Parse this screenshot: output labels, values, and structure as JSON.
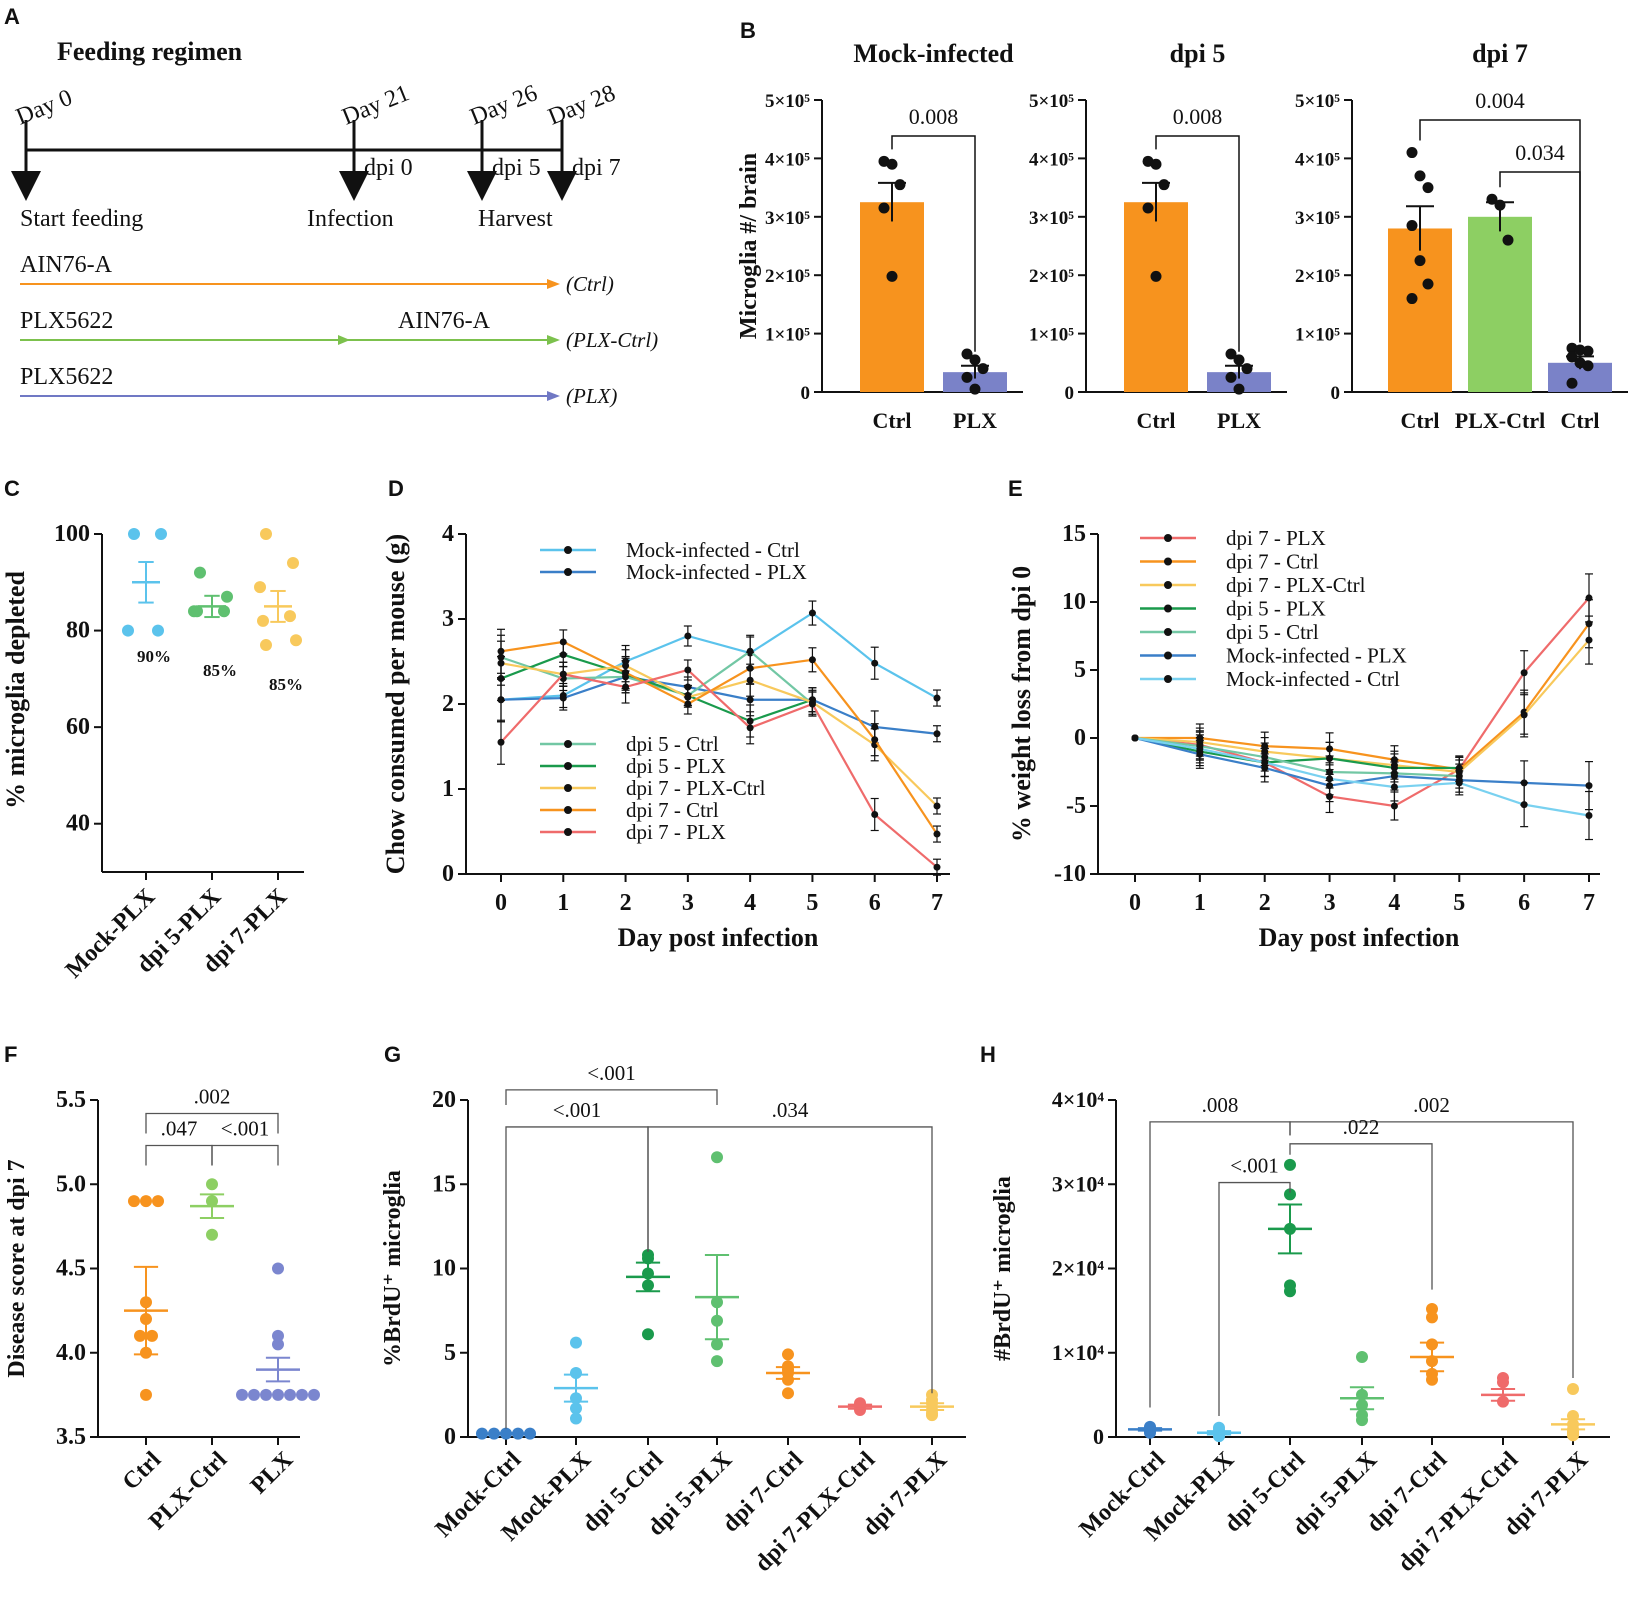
{
  "figure": {
    "colors": {
      "orange": "#f7931e",
      "green": "#8dcf63",
      "green_dark": "#1a9a4c",
      "green_mid": "#5fc070",
      "blue": "#3a7fc8",
      "blue_light": "#5bc3ec",
      "navy": "#7a82c8",
      "purple": "#7b86cf",
      "yellow": "#f8c95c",
      "red": "#ef6b6b",
      "teal": "#72c7a4",
      "cyan_light": "#79d1f0"
    }
  },
  "panel_labels": [
    "A",
    "B",
    "C",
    "D",
    "E",
    "F",
    "G",
    "H"
  ],
  "panelA": {
    "title": "Feeding regimen",
    "days": [
      "Day 0",
      "Day 21",
      "Day 26",
      "Day 28"
    ],
    "dpi": [
      "dpi 0",
      "dpi 5",
      "dpi 7"
    ],
    "events": [
      "Start feeding",
      "Infection",
      "Harvest"
    ],
    "diets": [
      {
        "name": "AIN76-A",
        "name2": "",
        "tag": "(Ctrl)",
        "color": "#f7931e"
      },
      {
        "name": "PLX5622",
        "name2": "AIN76-A",
        "tag": "(PLX-Ctrl)",
        "color": "#7cc14d"
      },
      {
        "name": "PLX5622",
        "name2": "",
        "tag": "(PLX)",
        "color": "#7078c4"
      }
    ]
  },
  "chart_data": [
    {
      "panel": "B",
      "type": "bar",
      "ylabel": "Microglia #/ brain",
      "ylim": [
        0,
        500000
      ],
      "yticks": [
        "0",
        "1×10⁵",
        "2×10⁵",
        "3×10⁵",
        "4×10⁵",
        "5×10⁵"
      ],
      "subplots": [
        {
          "title": "Mock-infected",
          "categories": [
            "Ctrl",
            "PLX"
          ],
          "values": [
            325000,
            34000
          ],
          "sem": [
            33000,
            11000
          ],
          "points": [
            [
              395000,
              390000,
              355000,
              315000,
              198000
            ],
            [
              65000,
              55000,
              40000,
              25000,
              5000
            ]
          ],
          "comparisons": [
            {
              "text": "0.008",
              "from": 0,
              "to": 1,
              "level": 0
            }
          ]
        },
        {
          "title": "dpi 5",
          "categories": [
            "Ctrl",
            "PLX"
          ],
          "values": [
            325000,
            34000
          ],
          "sem": [
            33000,
            11000
          ],
          "points": [
            [
              395000,
              390000,
              355000,
              315000,
              198000
            ],
            [
              65000,
              55000,
              40000,
              25000,
              5000
            ]
          ],
          "comparisons": [
            {
              "text": "0.008",
              "from": 0,
              "to": 1,
              "level": 0
            }
          ]
        },
        {
          "title": "dpi 7",
          "categories": [
            "Ctrl",
            "PLX-Ctrl",
            "Ctrl"
          ],
          "values": [
            280000,
            300000,
            50000
          ],
          "sem": [
            38000,
            25000,
            11000
          ],
          "points": [
            [
              410000,
              370000,
              350000,
              285000,
              225000,
              185000,
              160000
            ],
            [
              330000,
              320000,
              260000
            ],
            [
              75000,
              72000,
              70000,
              60000,
              50000,
              45000,
              15000
            ]
          ],
          "comparisons": [
            {
              "text": "0.004",
              "from": 0,
              "to": 2,
              "level": 1
            },
            {
              "text": "0.034",
              "from": 1,
              "to": 2,
              "level": 0
            }
          ]
        }
      ]
    },
    {
      "panel": "C",
      "type": "scatter",
      "ylabel": "% microglia depleted",
      "ylim": [
        30,
        100
      ],
      "yticks": [
        40,
        60,
        80,
        100
      ],
      "categories": [
        "Mock-PLX",
        "dpi 5-PLX",
        "dpi 7-PLX"
      ],
      "series": [
        {
          "name": "Mock-PLX",
          "points": [
            100,
            100,
            80,
            80
          ],
          "mean": 90,
          "sem": 4.2,
          "label": "90%"
        },
        {
          "name": "dpi 5-PLX",
          "points": [
            92,
            87,
            84,
            84,
            84
          ],
          "mean": 85,
          "sem": 2.2,
          "label": "85%"
        },
        {
          "name": "dpi 7-PLX",
          "points": [
            100,
            94,
            89,
            83,
            82,
            78,
            77
          ],
          "mean": 85,
          "sem": 3.2,
          "label": "85%"
        }
      ]
    },
    {
      "panel": "D",
      "type": "line",
      "xlabel": "Day post infection",
      "ylabel": "Chow consumed per mouse (g)",
      "x": [
        0,
        1,
        2,
        3,
        4,
        5,
        6,
        7
      ],
      "ylim": [
        0,
        4
      ],
      "yticks": [
        0,
        1,
        2,
        3,
        4
      ],
      "series": [
        {
          "name": "Mock-infected - Ctrl",
          "values": [
            2.05,
            2.1,
            2.5,
            2.8,
            2.6,
            3.07,
            2.48,
            2.07
          ]
        },
        {
          "name": "Mock-infected - PLX",
          "values": [
            2.05,
            2.07,
            2.32,
            2.2,
            2.05,
            2.05,
            1.73,
            1.65
          ]
        },
        {
          "name": "dpi 5 - Ctrl",
          "values": [
            2.55,
            2.3,
            2.32,
            2.1,
            2.62,
            2.0,
            null,
            null
          ]
        },
        {
          "name": "dpi 5 - PLX",
          "values": [
            2.3,
            2.58,
            2.35,
            2.1,
            1.8,
            2.05,
            null,
            null
          ]
        },
        {
          "name": "dpi 7 - PLX-Ctrl",
          "values": [
            2.48,
            2.35,
            2.45,
            2.08,
            2.28,
            2.02,
            1.52,
            0.8
          ]
        },
        {
          "name": "dpi 7 - Ctrl",
          "values": [
            2.62,
            2.73,
            2.37,
            2.0,
            2.42,
            2.52,
            1.58,
            0.47
          ]
        },
        {
          "name": "dpi 7 - PLX",
          "values": [
            1.55,
            2.35,
            2.2,
            2.4,
            1.72,
            2.0,
            0.7,
            0.08
          ]
        }
      ]
    },
    {
      "panel": "E",
      "type": "line",
      "xlabel": "Day post infection",
      "ylabel": "% weight loss from dpi 0",
      "x": [
        0,
        1,
        2,
        3,
        4,
        5,
        6,
        7
      ],
      "ylim": [
        -10,
        15
      ],
      "yticks": [
        -10,
        -5,
        0,
        5,
        10,
        15
      ],
      "series": [
        {
          "name": "dpi 7 - PLX",
          "values": [
            0,
            -0.5,
            -1.8,
            -4.3,
            -5.0,
            -2.3,
            4.8,
            10.3
          ]
        },
        {
          "name": "dpi 7 - Ctrl",
          "values": [
            0,
            0.0,
            -0.6,
            -0.8,
            -1.6,
            -2.3,
            1.9,
            8.4
          ]
        },
        {
          "name": "dpi 7 - PLX-Ctrl",
          "values": [
            0,
            -0.3,
            -1.0,
            -1.5,
            -2.0,
            -2.5,
            1.7,
            7.2
          ]
        },
        {
          "name": "dpi 5 - PLX",
          "values": [
            0,
            -1.0,
            -1.8,
            -1.5,
            -2.2,
            -2.2,
            null,
            null
          ]
        },
        {
          "name": "dpi 5 - Ctrl",
          "values": [
            0,
            -0.6,
            -1.4,
            -2.5,
            -2.6,
            -2.8,
            null,
            null
          ]
        },
        {
          "name": "Mock-infected - PLX",
          "values": [
            0,
            -1.2,
            -2.2,
            -3.5,
            -2.8,
            -3.1,
            -3.3,
            -3.5
          ]
        },
        {
          "name": "Mock-infected - Ctrl",
          "values": [
            0,
            -0.8,
            -1.8,
            -3.0,
            -3.6,
            -3.3,
            -4.9,
            -5.7
          ]
        }
      ]
    },
    {
      "panel": "F",
      "type": "scatter",
      "ylabel": "Disease score at dpi 7",
      "ylim": [
        3.5,
        5.5
      ],
      "yticks": [
        "3.5",
        "4.0",
        "4.5",
        "5.0",
        "5.5"
      ],
      "categories": [
        "Ctrl",
        "PLX-Ctrl",
        "PLX"
      ],
      "series": [
        {
          "name": "Ctrl",
          "points": [
            4.9,
            4.9,
            4.9,
            4.3,
            4.2,
            4.1,
            4.1,
            4.0,
            3.75
          ],
          "mean": 4.25,
          "sem": 0.26
        },
        {
          "name": "PLX-Ctrl",
          "points": [
            5.0,
            4.9,
            4.7
          ],
          "mean": 4.87,
          "sem": 0.07
        },
        {
          "name": "PLX",
          "points": [
            4.5,
            4.1,
            4.05,
            3.75,
            3.75,
            3.75,
            3.75,
            3.75,
            3.75,
            3.75
          ],
          "mean": 3.9,
          "sem": 0.07
        }
      ],
      "comparisons": [
        {
          "text": ".002",
          "from": 0,
          "to": 2,
          "y": 5.42
        },
        {
          "text": ".047",
          "from": 0,
          "to": 1,
          "y": 5.23
        },
        {
          "text": "<.001",
          "from": 1,
          "to": 2,
          "y": 5.23
        }
      ]
    },
    {
      "panel": "G",
      "type": "scatter",
      "ylabel": "%BrdU⁺ microglia",
      "ylim": [
        0,
        20
      ],
      "yticks": [
        0,
        5,
        10,
        15,
        20
      ],
      "categories": [
        "Mock-Ctrl",
        "Mock-PLX",
        "dpi 5-Ctrl",
        "dpi 5-PLX",
        "dpi 7-Ctrl",
        "dpi 7-PLX-Ctrl",
        "dpi 7-PLX"
      ],
      "series": [
        {
          "name": "Mock-Ctrl",
          "points": [
            0.2,
            0.2,
            0.2,
            0.2,
            0.2
          ],
          "mean": 0.2,
          "sem": 0.03
        },
        {
          "name": "Mock-PLX",
          "points": [
            5.6,
            3.8,
            2.3,
            1.7,
            1.1
          ],
          "mean": 2.9,
          "sem": 0.8
        },
        {
          "name": "dpi 5-Ctrl",
          "points": [
            10.8,
            10.6,
            9.7,
            9.0,
            6.1
          ],
          "mean": 9.5,
          "sem": 0.85
        },
        {
          "name": "dpi 5-PLX",
          "points": [
            16.6,
            8.0,
            6.9,
            5.5,
            4.5
          ],
          "mean": 8.3,
          "sem": 2.5
        },
        {
          "name": "dpi 7-Ctrl",
          "points": [
            4.9,
            4.2,
            4.0,
            3.8,
            3.4,
            2.6
          ],
          "mean": 3.8,
          "sem": 0.35
        },
        {
          "name": "dpi 7-PLX-Ctrl",
          "points": [
            2.0,
            1.8,
            1.6
          ],
          "mean": 1.8,
          "sem": 0.12
        },
        {
          "name": "dpi 7-PLX",
          "points": [
            2.5,
            2.2,
            2.0,
            1.6,
            1.4,
            1.3
          ],
          "mean": 1.8,
          "sem": 0.2
        }
      ],
      "comparisons": [
        {
          "text": "<.001",
          "from": 0,
          "to": 3,
          "y": 20.6,
          "drop_to": [
            19.7,
            19.7
          ]
        },
        {
          "text": "<.001",
          "from": 0,
          "to": 2,
          "y": 18.4,
          "drop_to": [
            0.5,
            11.0
          ]
        },
        {
          "text": ".034",
          "from": 2,
          "to": 6,
          "y": 18.4,
          "drop_to": [
            11.0,
            2.6
          ]
        }
      ]
    },
    {
      "panel": "H",
      "type": "scatter",
      "ylabel": "#BrdU⁺ microglia",
      "ylim": [
        0,
        40000
      ],
      "yticks": [
        "0",
        "1×10⁴",
        "2×10⁴",
        "3×10⁴",
        "4×10⁴"
      ],
      "categories": [
        "Mock-Ctrl",
        "Mock-PLX",
        "dpi 5-Ctrl",
        "dpi 5-PLX",
        "dpi 7-Ctrl",
        "dpi 7-PLX-Ctrl",
        "dpi 7-PLX"
      ],
      "series": [
        {
          "name": "Mock-Ctrl",
          "points": [
            1200,
            1100,
            900,
            700,
            500
          ],
          "mean": 900,
          "sem": 150
        },
        {
          "name": "Mock-PLX",
          "points": [
            1100,
            800,
            400,
            200,
            100
          ],
          "mean": 500,
          "sem": 200
        },
        {
          "name": "dpi 5-Ctrl",
          "points": [
            32300,
            28800,
            24700,
            18000,
            17300
          ],
          "mean": 24700,
          "sem": 2900
        },
        {
          "name": "dpi 5-PLX",
          "points": [
            9500,
            5000,
            3800,
            2600,
            2000
          ],
          "mean": 4600,
          "sem": 1300
        },
        {
          "name": "dpi 7-Ctrl",
          "points": [
            15200,
            14200,
            11000,
            9000,
            7500,
            6800
          ],
          "mean": 9500,
          "sem": 1700
        },
        {
          "name": "dpi 7-PLX-Ctrl",
          "points": [
            7000,
            6500,
            4200
          ],
          "mean": 5000,
          "sem": 700
        },
        {
          "name": "dpi 7-PLX",
          "points": [
            5700,
            2500,
            1500,
            900,
            600,
            400,
            200
          ],
          "mean": 1500,
          "sem": 600
        }
      ],
      "comparisons": [
        {
          "text": ".008",
          "from": 0,
          "to": 2,
          "y": 37400,
          "drop_to": [
            3500,
            35800
          ]
        },
        {
          "text": ".002",
          "from": 2,
          "to": 6,
          "y": 37400,
          "drop_to": [
            35800,
            7000
          ]
        },
        {
          "text": ".022",
          "from": 2,
          "to": 4,
          "y": 34800,
          "drop_to": [
            33500,
            17500
          ]
        },
        {
          "text": "<.001",
          "from": 1,
          "to": 2,
          "y": 30200,
          "drop_to": [
            2500,
            29000
          ]
        }
      ]
    }
  ]
}
